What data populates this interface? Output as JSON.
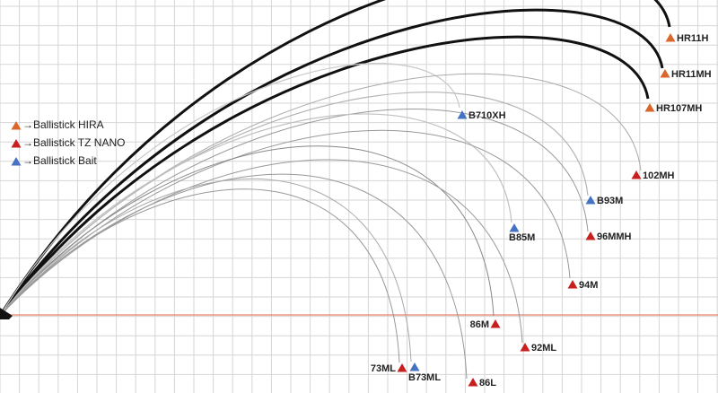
{
  "legend": [
    {
      "label": "→Ballistick HIRA"
    },
    {
      "label": "→Ballistick TZ NANO"
    },
    {
      "label": "→Ballistick Bait"
    }
  ],
  "rods": [
    {
      "label": "HR11H"
    },
    {
      "label": "HR11MH"
    },
    {
      "label": "HR107MH"
    },
    {
      "label": "B710XH"
    },
    {
      "label": "102MH"
    },
    {
      "label": "B93M"
    },
    {
      "label": "B85M"
    },
    {
      "label": "96MMH"
    },
    {
      "label": "94M"
    },
    {
      "label": "86M"
    },
    {
      "label": "92ML"
    },
    {
      "label": "73ML"
    },
    {
      "label": "B73ML"
    },
    {
      "label": "86L"
    }
  ]
}
